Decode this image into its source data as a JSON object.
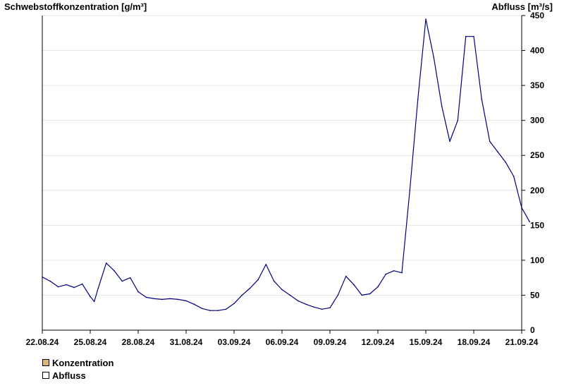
{
  "chart_data": {
    "type": "line",
    "y_left_label": "Schwebstoffkonzentration [g/m³]",
    "y_right_label": "Abfluss [m³/s]",
    "y_right_range": [
      0,
      450
    ],
    "y_right_ticks": [
      "0",
      "50",
      "100",
      "150",
      "200",
      "250",
      "300",
      "350",
      "400",
      "450"
    ],
    "x_range": [
      "2024-08-22",
      "2024-09-21"
    ],
    "x_ticks": [
      {
        "date": "2024-08-22",
        "label": "22.08.24"
      },
      {
        "date": "2024-08-25",
        "label": "25.08.24"
      },
      {
        "date": "2024-08-28",
        "label": "28.08.24"
      },
      {
        "date": "2024-08-31",
        "label": "31.08.24"
      },
      {
        "date": "2024-09-03",
        "label": "03.09.24"
      },
      {
        "date": "2024-09-06",
        "label": "06.09.24"
      },
      {
        "date": "2024-09-09",
        "label": "09.09.24"
      },
      {
        "date": "2024-09-12",
        "label": "12.09.24"
      },
      {
        "date": "2024-09-15",
        "label": "15.09.24"
      },
      {
        "date": "2024-09-18",
        "label": "18.09.24"
      },
      {
        "date": "2024-09-21",
        "label": "21.09.24"
      }
    ],
    "grid": true,
    "legend_position": "bottom-left",
    "series": [
      {
        "name": "Konzentration",
        "color": "#deb47c",
        "points": []
      },
      {
        "name": "Abfluss",
        "color": "#000080",
        "points": [
          [
            "2024-08-22 00:00",
            76
          ],
          [
            "2024-08-22 12:00",
            70
          ],
          [
            "2024-08-23 00:00",
            62
          ],
          [
            "2024-08-23 12:00",
            65
          ],
          [
            "2024-08-24 00:00",
            61
          ],
          [
            "2024-08-24 12:00",
            66
          ],
          [
            "2024-08-25 00:00",
            48
          ],
          [
            "2024-08-25 06:00",
            41
          ],
          [
            "2024-08-25 12:00",
            60
          ],
          [
            "2024-08-26 00:00",
            96
          ],
          [
            "2024-08-26 12:00",
            85
          ],
          [
            "2024-08-27 00:00",
            70
          ],
          [
            "2024-08-27 12:00",
            75
          ],
          [
            "2024-08-28 00:00",
            55
          ],
          [
            "2024-08-28 12:00",
            47
          ],
          [
            "2024-08-29 00:00",
            45
          ],
          [
            "2024-08-29 12:00",
            44
          ],
          [
            "2024-08-30 00:00",
            45
          ],
          [
            "2024-08-30 12:00",
            44
          ],
          [
            "2024-08-31 00:00",
            42
          ],
          [
            "2024-08-31 12:00",
            37
          ],
          [
            "2024-09-01 00:00",
            31
          ],
          [
            "2024-09-01 12:00",
            28
          ],
          [
            "2024-09-02 00:00",
            28
          ],
          [
            "2024-09-02 12:00",
            30
          ],
          [
            "2024-09-03 00:00",
            38
          ],
          [
            "2024-09-03 12:00",
            50
          ],
          [
            "2024-09-04 00:00",
            60
          ],
          [
            "2024-09-04 12:00",
            72
          ],
          [
            "2024-09-05 00:00",
            94
          ],
          [
            "2024-09-05 12:00",
            70
          ],
          [
            "2024-09-06 00:00",
            58
          ],
          [
            "2024-09-06 12:00",
            50
          ],
          [
            "2024-09-07 00:00",
            42
          ],
          [
            "2024-09-07 12:00",
            37
          ],
          [
            "2024-09-08 00:00",
            33
          ],
          [
            "2024-09-08 12:00",
            30
          ],
          [
            "2024-09-09 00:00",
            32
          ],
          [
            "2024-09-09 12:00",
            50
          ],
          [
            "2024-09-10 00:00",
            77
          ],
          [
            "2024-09-10 12:00",
            65
          ],
          [
            "2024-09-11 00:00",
            50
          ],
          [
            "2024-09-11 12:00",
            52
          ],
          [
            "2024-09-12 00:00",
            62
          ],
          [
            "2024-09-12 12:00",
            80
          ],
          [
            "2024-09-13 00:00",
            85
          ],
          [
            "2024-09-13 12:00",
            82
          ],
          [
            "2024-09-14 00:00",
            200
          ],
          [
            "2024-09-14 12:00",
            330
          ],
          [
            "2024-09-15 00:00",
            445
          ],
          [
            "2024-09-15 12:00",
            390
          ],
          [
            "2024-09-16 00:00",
            320
          ],
          [
            "2024-09-16 12:00",
            270
          ],
          [
            "2024-09-17 00:00",
            300
          ],
          [
            "2024-09-17 12:00",
            420
          ],
          [
            "2024-09-18 00:00",
            420
          ],
          [
            "2024-09-18 12:00",
            330
          ],
          [
            "2024-09-19 00:00",
            270
          ],
          [
            "2024-09-19 12:00",
            255
          ],
          [
            "2024-09-20 00:00",
            240
          ],
          [
            "2024-09-20 12:00",
            220
          ],
          [
            "2024-09-21 00:00",
            175
          ],
          [
            "2024-09-21 12:00",
            155
          ]
        ]
      }
    ]
  }
}
